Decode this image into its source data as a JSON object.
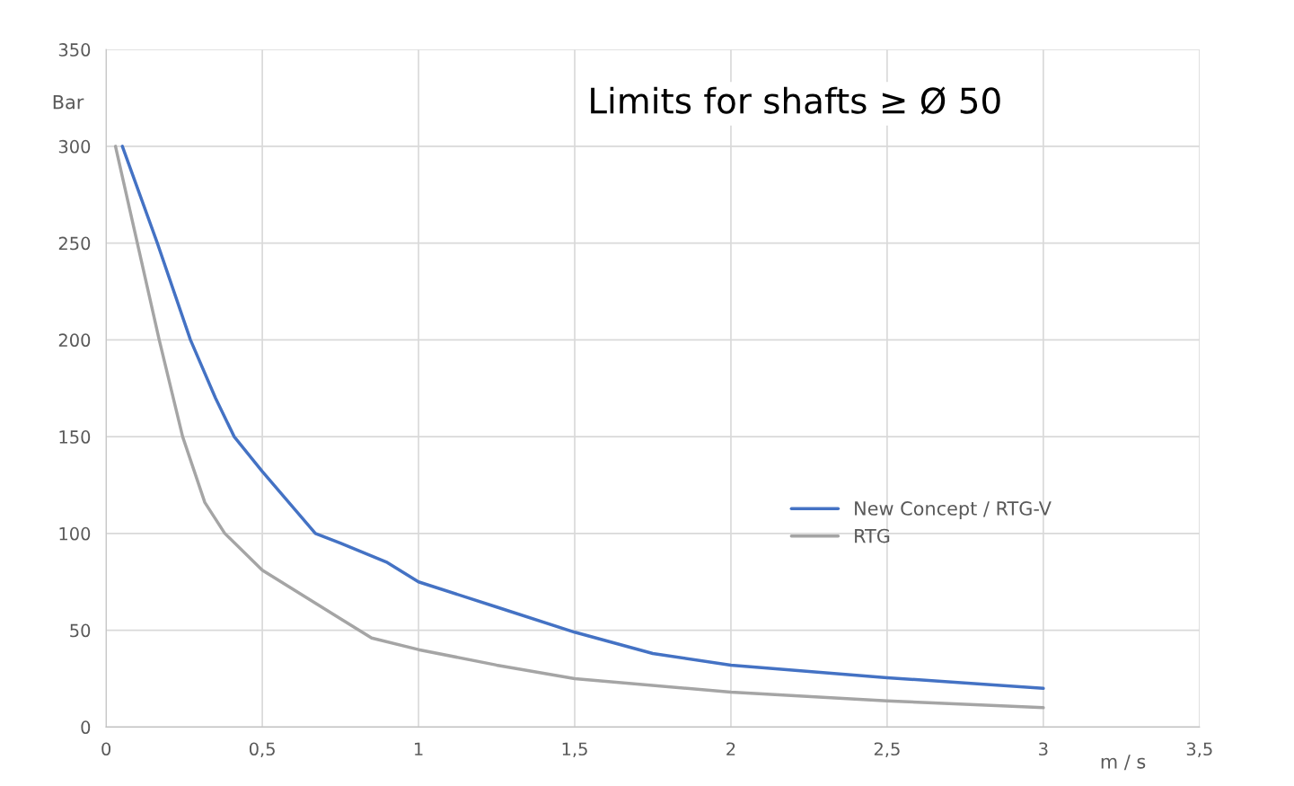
{
  "chart_data": {
    "type": "line",
    "xlabel": "m / s",
    "ylabel": "Bar",
    "annotations": [
      "Limits for shafts ≥ Ø 50"
    ],
    "xlim": [
      0,
      3.5
    ],
    "xticks": [
      0,
      {
        "value": 0.5,
        "label": "0,5"
      },
      1,
      {
        "value": 1.5,
        "label": "1,5"
      },
      2,
      {
        "value": 2.5,
        "label": "2,5"
      },
      3,
      {
        "value": 3.5,
        "label": "3,5"
      }
    ],
    "ylim": [
      0,
      350
    ],
    "yticks": [
      0,
      50,
      100,
      150,
      200,
      250,
      300,
      350
    ],
    "grid": true,
    "legend": "right",
    "marker": "none",
    "line_style": "solid",
    "series": [
      {
        "name": "New Concept / RTG-V",
        "color": "#4472c4",
        "x": [
          0.052,
          0.164,
          0.27,
          0.35,
          0.41,
          0.5,
          0.67,
          0.75,
          0.9,
          1,
          1.25,
          1.5,
          1.75,
          2,
          2.5,
          3
        ],
        "values": [
          300,
          250,
          200,
          170,
          150,
          132,
          100,
          95,
          85,
          75,
          62,
          49,
          38,
          32,
          25.5,
          20
        ]
      },
      {
        "name": "RTG",
        "color": "#a5a5a5",
        "x": [
          0.03,
          0.17,
          0.245,
          0.316,
          0.38,
          0.5,
          0.75,
          0.85,
          1,
          1.25,
          1.5,
          2,
          2.5,
          3
        ],
        "values": [
          300,
          200,
          150,
          116,
          100,
          81,
          56,
          46,
          40,
          32,
          25,
          18,
          13.5,
          10
        ]
      }
    ]
  }
}
